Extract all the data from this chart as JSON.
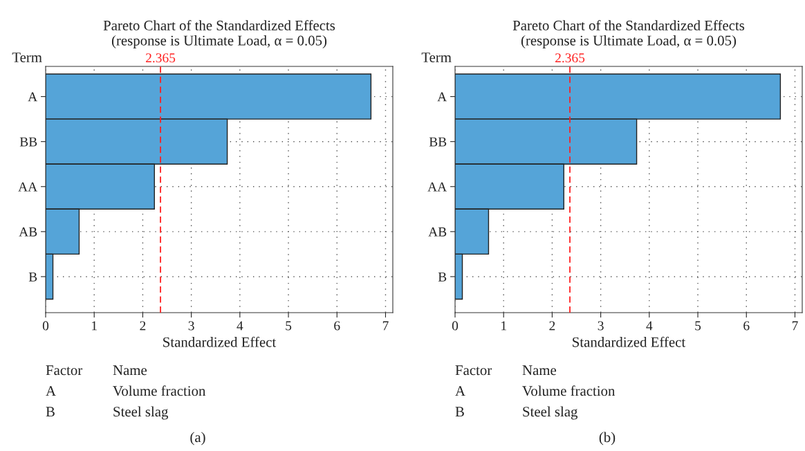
{
  "chart_data": [
    {
      "type": "bar",
      "orientation": "horizontal",
      "title": "Pareto Chart of the Standardized Effects\n(response is Ultimate Load, α = 0.05)",
      "xlabel": "Standardized Effect",
      "ylabel": "Term",
      "categories": [
        "A",
        "BB",
        "AA",
        "AB",
        "B"
      ],
      "values": [
        6.7,
        3.74,
        2.24,
        0.69,
        0.15
      ],
      "color": "#55a4d8",
      "xlim": [
        0,
        7.15
      ],
      "xticks": [
        0,
        1,
        2,
        3,
        4,
        5,
        6,
        7
      ],
      "grid": true,
      "ref_lines": [
        {
          "axis": "x",
          "value": 2.365,
          "label": "2.365",
          "color": "#ff2020",
          "line_style": "dashed"
        }
      ],
      "annotations": [
        "Factor",
        "Name",
        "A",
        "Volume fraction",
        "B",
        "Steel slag",
        "(a)"
      ]
    },
    {
      "type": "bar",
      "orientation": "horizontal",
      "title": "Pareto Chart of the Standardized Effects\n(response is Ultimate Load, α = 0.05)",
      "xlabel": "Standardized Effect",
      "ylabel": "Term",
      "categories": [
        "A",
        "BB",
        "AA",
        "AB",
        "B"
      ],
      "values": [
        6.7,
        3.74,
        2.24,
        0.69,
        0.15
      ],
      "color": "#55a4d8",
      "xlim": [
        0,
        7.15
      ],
      "xticks": [
        0,
        1,
        2,
        3,
        4,
        5,
        6,
        7
      ],
      "grid": true,
      "ref_lines": [
        {
          "axis": "x",
          "value": 2.365,
          "label": "2.365",
          "color": "#ff2020",
          "line_style": "dashed"
        }
      ],
      "annotations": [
        "Factor",
        "Name",
        "A",
        "Volume fraction",
        "B",
        "Steel slag",
        "(b)"
      ]
    }
  ]
}
